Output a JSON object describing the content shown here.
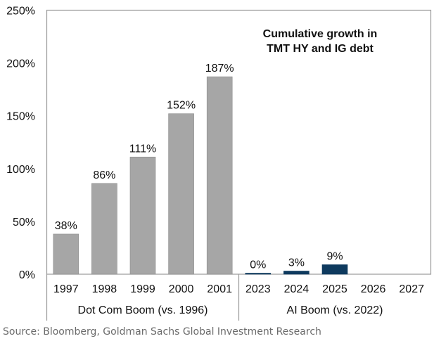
{
  "chart_data": {
    "type": "bar",
    "title_lines": [
      "Cumulative growth in",
      "TMT HY and IG debt"
    ],
    "categories": [
      "1997",
      "1998",
      "1999",
      "2000",
      "2001",
      "2023",
      "2024",
      "2025",
      "2026",
      "2027"
    ],
    "values": [
      38,
      86,
      111,
      152,
      187,
      0,
      3,
      9,
      null,
      null
    ],
    "data_labels": [
      "38%",
      "86%",
      "111%",
      "152%",
      "187%",
      "0%",
      "3%",
      "9%",
      "",
      ""
    ],
    "groups": [
      {
        "label": "Dot Com Boom (vs. 1996)",
        "categories": [
          "1997",
          "1998",
          "1999",
          "2000",
          "2001"
        ],
        "color": "#a6a6a6"
      },
      {
        "label": "AI Boom (vs. 2022)",
        "categories": [
          "2023",
          "2024",
          "2025",
          "2026",
          "2027"
        ],
        "color": "#0e3a5e"
      }
    ],
    "yticks": [
      "0%",
      "50%",
      "100%",
      "150%",
      "200%",
      "250%"
    ],
    "ylim": [
      0,
      250
    ],
    "grid": false,
    "xlabel": "",
    "ylabel": ""
  },
  "source": "Source: Bloomberg, Goldman Sachs Global Investment Research"
}
